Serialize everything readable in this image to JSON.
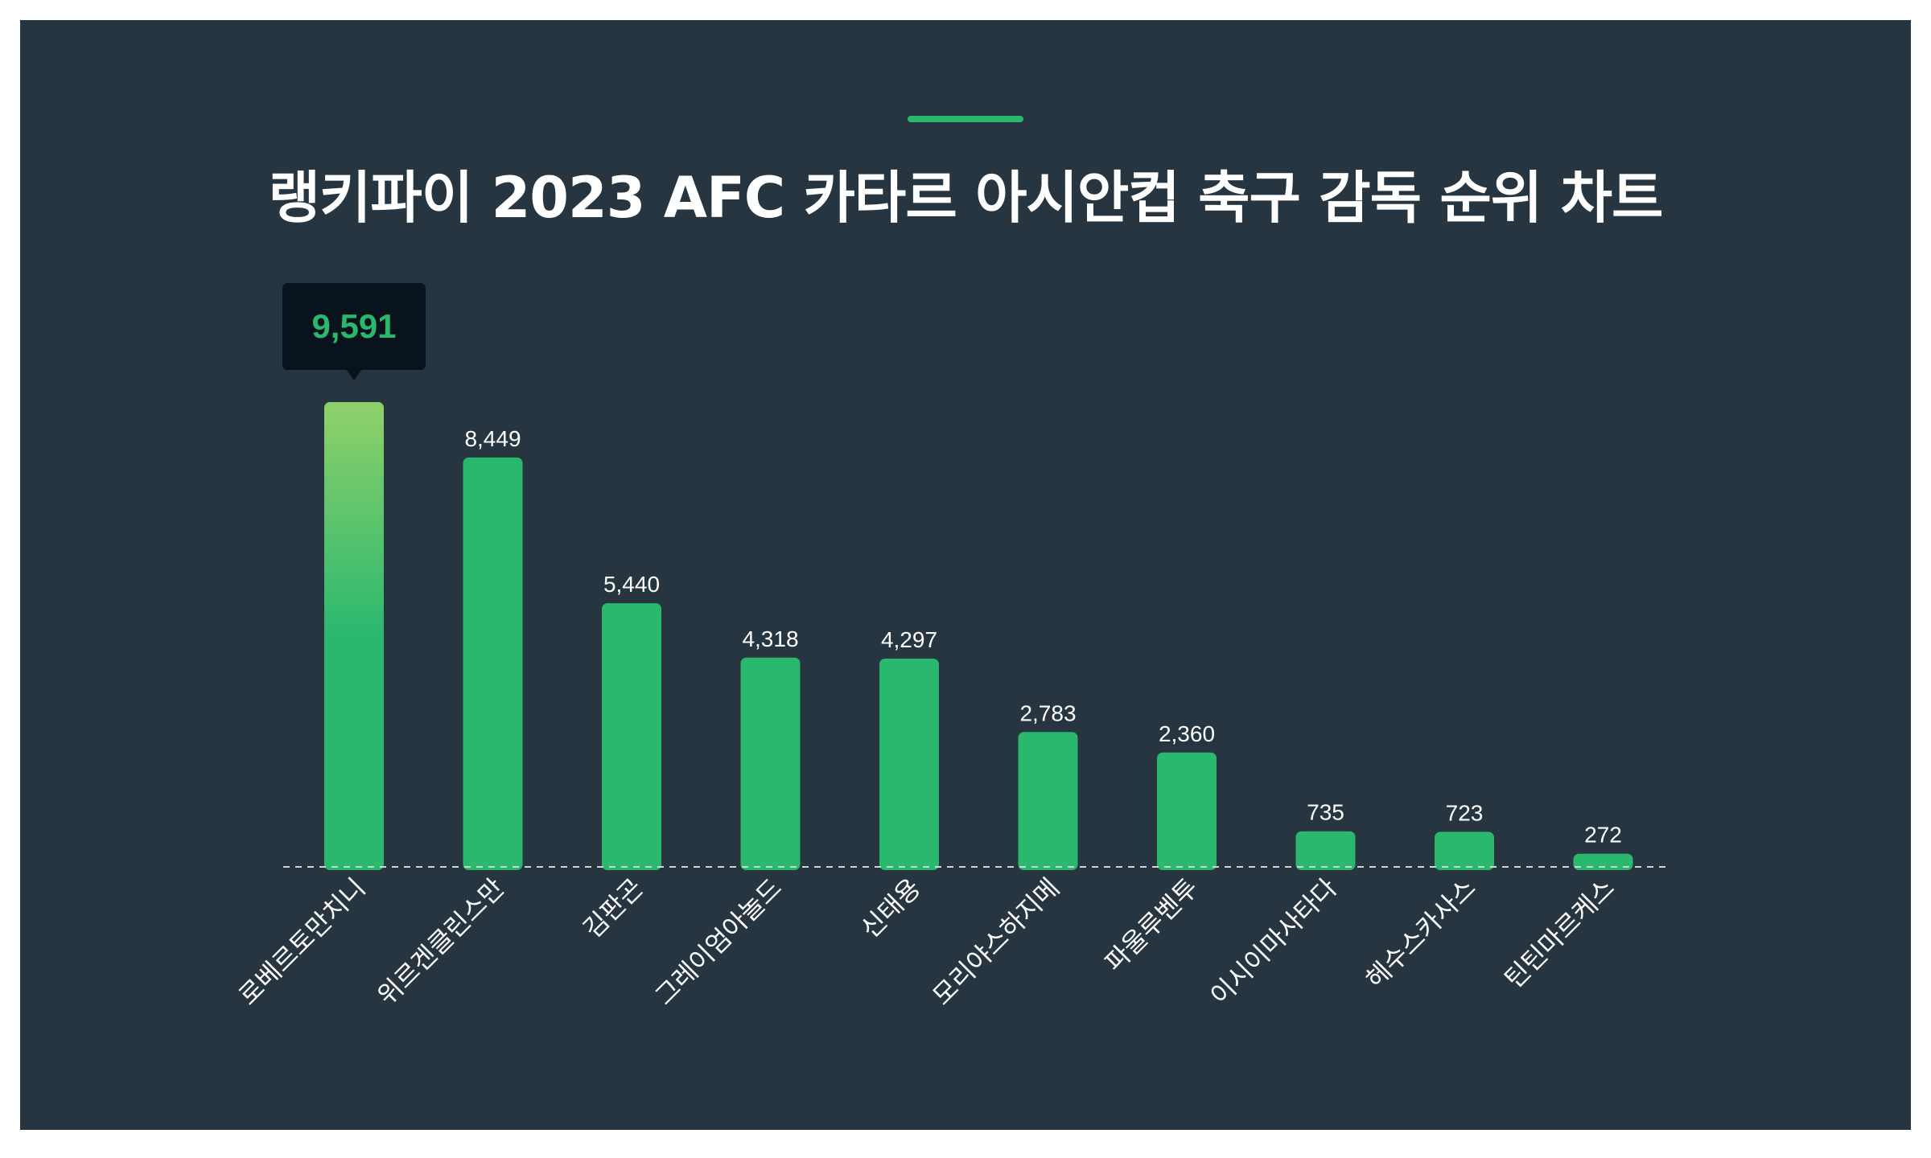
{
  "title": "랭키파이 2023 AFC 카타르 아시안컵 축구 감독 순위 차트",
  "colors": {
    "background": "#263540",
    "bar": "#2ab86f",
    "highlight_top": "#8fd16a",
    "tooltip_bg": "#08131c",
    "baseline": "#cfd6da"
  },
  "chart_data": {
    "type": "bar",
    "title": "랭키파이 2023 AFC 카타르 아시안컵 축구 감독 순위 차트",
    "categories": [
      "로베르토만치니",
      "위르겐클린스만",
      "김판곤",
      "그레이엄아놀드",
      "신태용",
      "모리야스하지메",
      "파울루벤투",
      "이시이마사타다",
      "헤수스카사스",
      "틴틴마르케스"
    ],
    "values": [
      9591,
      8449,
      5440,
      4318,
      4297,
      2783,
      2360,
      735,
      723,
      272
    ],
    "value_labels": [
      "9,591",
      "8,449",
      "5,440",
      "4,318",
      "4,297",
      "2,783",
      "2,360",
      "735",
      "723",
      "272"
    ],
    "highlighted_index": 0,
    "ylim": [
      0,
      9591
    ],
    "grid": false,
    "legend": "none"
  }
}
